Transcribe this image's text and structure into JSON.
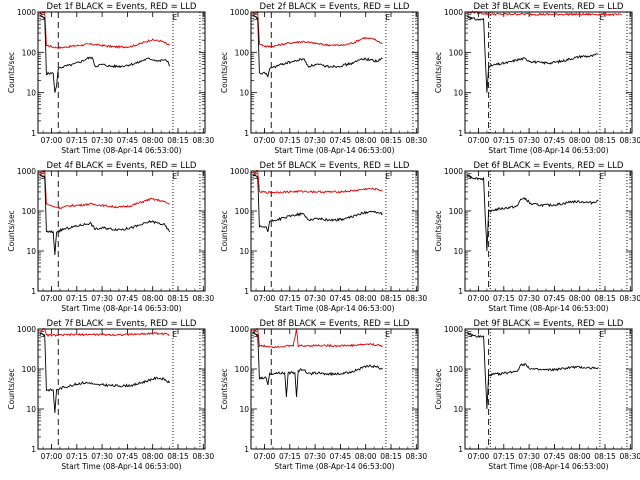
{
  "figure": {
    "colors": {
      "events": "#000000",
      "lld": "#e00000",
      "background": "#ffffff"
    },
    "shared_x_axis": {
      "xlabel": "Start Time (08-Apr-14 06:53:00)",
      "xticks": [
        "07:00",
        "07:15",
        "07:30",
        "07:45",
        "08:00",
        "08:15",
        "08:30"
      ],
      "xlim_minutes": [
        -1,
        98
      ]
    },
    "shared_y_axis": {
      "ylabel": "Counts/sec",
      "scale": "log",
      "ylim": [
        1,
        1000
      ],
      "yticks": [
        "1",
        "10",
        "100",
        "1000"
      ]
    }
  },
  "chart_data": [
    {
      "type": "line",
      "title": "Det 1f BLACK = Events, RED = LLD",
      "corner_labels": [
        "S",
        "E"
      ],
      "events_series": [
        [
          0,
          800
        ],
        [
          3,
          700
        ],
        [
          4,
          30
        ],
        [
          8,
          30
        ],
        [
          9,
          10
        ],
        [
          10,
          15
        ],
        [
          11,
          40
        ],
        [
          15,
          45
        ],
        [
          20,
          50
        ],
        [
          25,
          60
        ],
        [
          28,
          70
        ],
        [
          31,
          75
        ],
        [
          33,
          45
        ],
        [
          37,
          50
        ],
        [
          42,
          45
        ],
        [
          48,
          45
        ],
        [
          54,
          50
        ],
        [
          58,
          55
        ],
        [
          62,
          65
        ],
        [
          65,
          70
        ],
        [
          68,
          65
        ],
        [
          71,
          60
        ],
        [
          73,
          65
        ],
        [
          76,
          60
        ],
        [
          77,
          45
        ]
      ],
      "lld_series": [
        [
          0,
          900
        ],
        [
          3,
          1000
        ],
        [
          4,
          150
        ],
        [
          8,
          135
        ],
        [
          12,
          130
        ],
        [
          18,
          140
        ],
        [
          24,
          150
        ],
        [
          30,
          160
        ],
        [
          36,
          150
        ],
        [
          42,
          140
        ],
        [
          48,
          135
        ],
        [
          54,
          140
        ],
        [
          60,
          165
        ],
        [
          66,
          205
        ],
        [
          72,
          190
        ],
        [
          77,
          150
        ]
      ],
      "vlines": [
        {
          "x": -1,
          "style": "dotted"
        },
        {
          "x": 11,
          "style": "dashed"
        },
        {
          "x": 79,
          "style": "dotted"
        },
        {
          "x": 95,
          "style": "dotted"
        }
      ]
    },
    {
      "type": "line",
      "title": "Det 2f BLACK = Events, RED = LLD",
      "corner_labels": [
        "S",
        "E"
      ],
      "events_series": [
        [
          0,
          800
        ],
        [
          3,
          700
        ],
        [
          4,
          30
        ],
        [
          8,
          30
        ],
        [
          9,
          25
        ],
        [
          10,
          40
        ],
        [
          14,
          45
        ],
        [
          20,
          55
        ],
        [
          25,
          60
        ],
        [
          30,
          70
        ],
        [
          33,
          45
        ],
        [
          38,
          50
        ],
        [
          44,
          45
        ],
        [
          50,
          45
        ],
        [
          56,
          50
        ],
        [
          60,
          55
        ],
        [
          65,
          70
        ],
        [
          70,
          65
        ],
        [
          74,
          60
        ],
        [
          77,
          70
        ]
      ],
      "lld_series": [
        [
          0,
          900
        ],
        [
          3,
          1000
        ],
        [
          4,
          160
        ],
        [
          8,
          140
        ],
        [
          12,
          140
        ],
        [
          18,
          160
        ],
        [
          24,
          175
        ],
        [
          30,
          185
        ],
        [
          36,
          170
        ],
        [
          42,
          155
        ],
        [
          48,
          150
        ],
        [
          54,
          150
        ],
        [
          60,
          175
        ],
        [
          66,
          230
        ],
        [
          72,
          210
        ],
        [
          77,
          165
        ]
      ],
      "vlines": [
        {
          "x": -1,
          "style": "dotted"
        },
        {
          "x": 11,
          "style": "dashed"
        },
        {
          "x": 79,
          "style": "dotted"
        },
        {
          "x": 95,
          "style": "dotted"
        }
      ]
    },
    {
      "type": "line",
      "title": "Det 3f BLACK = Events, RED = LLD",
      "corner_labels": [
        "S",
        "E"
      ],
      "events_series": [
        [
          0,
          800
        ],
        [
          3,
          700
        ],
        [
          6,
          650
        ],
        [
          10,
          650
        ],
        [
          12,
          10
        ],
        [
          13,
          45
        ],
        [
          18,
          50
        ],
        [
          24,
          55
        ],
        [
          30,
          65
        ],
        [
          34,
          70
        ],
        [
          38,
          60
        ],
        [
          44,
          55
        ],
        [
          50,
          55
        ],
        [
          56,
          60
        ],
        [
          62,
          70
        ],
        [
          68,
          80
        ],
        [
          74,
          80
        ],
        [
          78,
          90
        ]
      ],
      "lld_series": [
        [
          0,
          900
        ],
        [
          3,
          1000
        ],
        [
          12,
          900
        ],
        [
          20,
          880
        ],
        [
          30,
          890
        ],
        [
          40,
          880
        ],
        [
          50,
          870
        ],
        [
          60,
          880
        ],
        [
          70,
          870
        ],
        [
          78,
          880
        ],
        [
          82,
          880
        ],
        [
          88,
          860
        ],
        [
          92,
          840
        ]
      ],
      "vlines": [
        {
          "x": -1,
          "style": "dotted"
        },
        {
          "x": 13,
          "style": "dashed"
        },
        {
          "x": 14,
          "style": "dotted"
        },
        {
          "x": 79,
          "style": "dotted"
        },
        {
          "x": 95,
          "style": "dotted"
        }
      ]
    },
    {
      "type": "line",
      "title": "Det 4f BLACK = Events, RED = LLD",
      "corner_labels": [
        "S",
        "E"
      ],
      "events_series": [
        [
          0,
          800
        ],
        [
          3,
          700
        ],
        [
          4,
          30
        ],
        [
          8,
          30
        ],
        [
          9,
          8
        ],
        [
          10,
          30
        ],
        [
          14,
          35
        ],
        [
          20,
          40
        ],
        [
          25,
          45
        ],
        [
          30,
          50
        ],
        [
          33,
          35
        ],
        [
          38,
          38
        ],
        [
          44,
          35
        ],
        [
          50,
          35
        ],
        [
          56,
          40
        ],
        [
          60,
          45
        ],
        [
          66,
          55
        ],
        [
          70,
          50
        ],
        [
          74,
          45
        ],
        [
          77,
          30
        ]
      ],
      "lld_series": [
        [
          0,
          900
        ],
        [
          3,
          1000
        ],
        [
          4,
          150
        ],
        [
          8,
          130
        ],
        [
          12,
          120
        ],
        [
          18,
          135
        ],
        [
          24,
          140
        ],
        [
          30,
          150
        ],
        [
          36,
          140
        ],
        [
          42,
          130
        ],
        [
          48,
          125
        ],
        [
          54,
          135
        ],
        [
          60,
          165
        ],
        [
          66,
          200
        ],
        [
          72,
          180
        ],
        [
          77,
          150
        ]
      ],
      "vlines": [
        {
          "x": -1,
          "style": "dotted"
        },
        {
          "x": 11,
          "style": "dashed"
        },
        {
          "x": 79,
          "style": "dotted"
        },
        {
          "x": 95,
          "style": "dotted"
        }
      ]
    },
    {
      "type": "line",
      "title": "Det 5f BLACK = Events, RED = LLD",
      "corner_labels": [
        "S",
        "E"
      ],
      "events_series": [
        [
          0,
          800
        ],
        [
          3,
          700
        ],
        [
          4,
          40
        ],
        [
          8,
          40
        ],
        [
          9,
          30
        ],
        [
          10,
          55
        ],
        [
          14,
          60
        ],
        [
          20,
          70
        ],
        [
          25,
          80
        ],
        [
          30,
          85
        ],
        [
          33,
          60
        ],
        [
          38,
          65
        ],
        [
          44,
          60
        ],
        [
          50,
          60
        ],
        [
          56,
          65
        ],
        [
          60,
          75
        ],
        [
          66,
          90
        ],
        [
          70,
          100
        ],
        [
          74,
          90
        ],
        [
          77,
          85
        ]
      ],
      "lld_series": [
        [
          0,
          900
        ],
        [
          3,
          1000
        ],
        [
          4,
          300
        ],
        [
          10,
          290
        ],
        [
          20,
          300
        ],
        [
          30,
          310
        ],
        [
          40,
          300
        ],
        [
          50,
          300
        ],
        [
          60,
          320
        ],
        [
          68,
          360
        ],
        [
          74,
          350
        ],
        [
          77,
          320
        ]
      ],
      "vlines": [
        {
          "x": -1,
          "style": "dotted"
        },
        {
          "x": 11,
          "style": "dashed"
        },
        {
          "x": 79,
          "style": "dotted"
        },
        {
          "x": 95,
          "style": "dotted"
        }
      ]
    },
    {
      "type": "line",
      "title": "Det 6f BLACK = Events, RED = LLD",
      "corner_labels": [
        "S",
        "E"
      ],
      "events_series": [
        [
          0,
          800
        ],
        [
          3,
          700
        ],
        [
          6,
          650
        ],
        [
          10,
          640
        ],
        [
          12,
          10
        ],
        [
          13,
          100
        ],
        [
          18,
          110
        ],
        [
          24,
          120
        ],
        [
          30,
          130
        ],
        [
          32,
          200
        ],
        [
          35,
          200
        ],
        [
          38,
          150
        ],
        [
          44,
          140
        ],
        [
          50,
          140
        ],
        [
          56,
          150
        ],
        [
          62,
          170
        ],
        [
          68,
          170
        ],
        [
          74,
          160
        ],
        [
          78,
          180
        ]
      ],
      "lld_series": [],
      "vlines": [
        {
          "x": -1,
          "style": "dotted"
        },
        {
          "x": 13,
          "style": "dashed"
        },
        {
          "x": 14,
          "style": "dotted"
        },
        {
          "x": 79,
          "style": "dotted"
        },
        {
          "x": 95,
          "style": "dotted"
        }
      ]
    },
    {
      "type": "line",
      "title": "Det 7f BLACK = Events, RED = LLD",
      "corner_labels": [
        "S",
        "E"
      ],
      "events_series": [
        [
          0,
          800
        ],
        [
          3,
          700
        ],
        [
          4,
          30
        ],
        [
          8,
          30
        ],
        [
          9,
          8
        ],
        [
          10,
          30
        ],
        [
          14,
          35
        ],
        [
          20,
          40
        ],
        [
          25,
          45
        ],
        [
          30,
          45
        ],
        [
          33,
          40
        ],
        [
          38,
          40
        ],
        [
          44,
          38
        ],
        [
          50,
          38
        ],
        [
          56,
          40
        ],
        [
          60,
          45
        ],
        [
          66,
          55
        ],
        [
          70,
          60
        ],
        [
          74,
          55
        ],
        [
          77,
          45
        ]
      ],
      "lld_series": [
        [
          0,
          900
        ],
        [
          3,
          1000
        ],
        [
          4,
          700
        ],
        [
          10,
          700
        ],
        [
          20,
          720
        ],
        [
          30,
          730
        ],
        [
          40,
          720
        ],
        [
          50,
          720
        ],
        [
          60,
          750
        ],
        [
          68,
          780
        ],
        [
          74,
          760
        ],
        [
          77,
          720
        ]
      ],
      "vlines": [
        {
          "x": -1,
          "style": "dotted"
        },
        {
          "x": 11,
          "style": "dashed"
        },
        {
          "x": 79,
          "style": "dotted"
        },
        {
          "x": 95,
          "style": "dotted"
        }
      ]
    },
    {
      "type": "line",
      "title": "Det 8f BLACK = Events, RED = LLD",
      "corner_labels": [
        "S",
        "E"
      ],
      "events_series": [
        [
          0,
          800
        ],
        [
          3,
          700
        ],
        [
          4,
          60
        ],
        [
          8,
          60
        ],
        [
          9,
          40
        ],
        [
          10,
          75
        ],
        [
          14,
          80
        ],
        [
          19,
          80
        ],
        [
          20,
          20
        ],
        [
          21,
          80
        ],
        [
          25,
          80
        ],
        [
          26,
          20
        ],
        [
          27,
          90
        ],
        [
          30,
          100
        ],
        [
          33,
          75
        ],
        [
          38,
          80
        ],
        [
          44,
          75
        ],
        [
          50,
          75
        ],
        [
          56,
          80
        ],
        [
          60,
          90
        ],
        [
          66,
          110
        ],
        [
          70,
          120
        ],
        [
          74,
          110
        ],
        [
          77,
          100
        ]
      ],
      "lld_series": [
        [
          0,
          900
        ],
        [
          3,
          1000
        ],
        [
          4,
          380
        ],
        [
          8,
          370
        ],
        [
          12,
          360
        ],
        [
          18,
          370
        ],
        [
          24,
          380
        ],
        [
          26,
          1000
        ],
        [
          27,
          380
        ],
        [
          30,
          380
        ],
        [
          40,
          390
        ],
        [
          50,
          380
        ],
        [
          60,
          390
        ],
        [
          68,
          420
        ],
        [
          74,
          400
        ],
        [
          77,
          370
        ]
      ],
      "vlines": [
        {
          "x": -1,
          "style": "dotted"
        },
        {
          "x": 11,
          "style": "dashed"
        },
        {
          "x": 79,
          "style": "dotted"
        },
        {
          "x": 95,
          "style": "dotted"
        }
      ]
    },
    {
      "type": "line",
      "title": "Det 9f BLACK = Events, RED = LLD",
      "corner_labels": [
        "S",
        "E"
      ],
      "events_series": [
        [
          0,
          800
        ],
        [
          3,
          700
        ],
        [
          6,
          650
        ],
        [
          10,
          640
        ],
        [
          12,
          10
        ],
        [
          13,
          70
        ],
        [
          18,
          75
        ],
        [
          24,
          80
        ],
        [
          30,
          90
        ],
        [
          32,
          130
        ],
        [
          35,
          130
        ],
        [
          38,
          100
        ],
        [
          44,
          95
        ],
        [
          50,
          95
        ],
        [
          56,
          100
        ],
        [
          62,
          110
        ],
        [
          68,
          110
        ],
        [
          74,
          105
        ],
        [
          78,
          110
        ]
      ],
      "lld_series": [],
      "vlines": [
        {
          "x": -1,
          "style": "dotted"
        },
        {
          "x": 13,
          "style": "dashed"
        },
        {
          "x": 14,
          "style": "dotted"
        },
        {
          "x": 79,
          "style": "dotted"
        },
        {
          "x": 95,
          "style": "dotted"
        }
      ]
    }
  ]
}
